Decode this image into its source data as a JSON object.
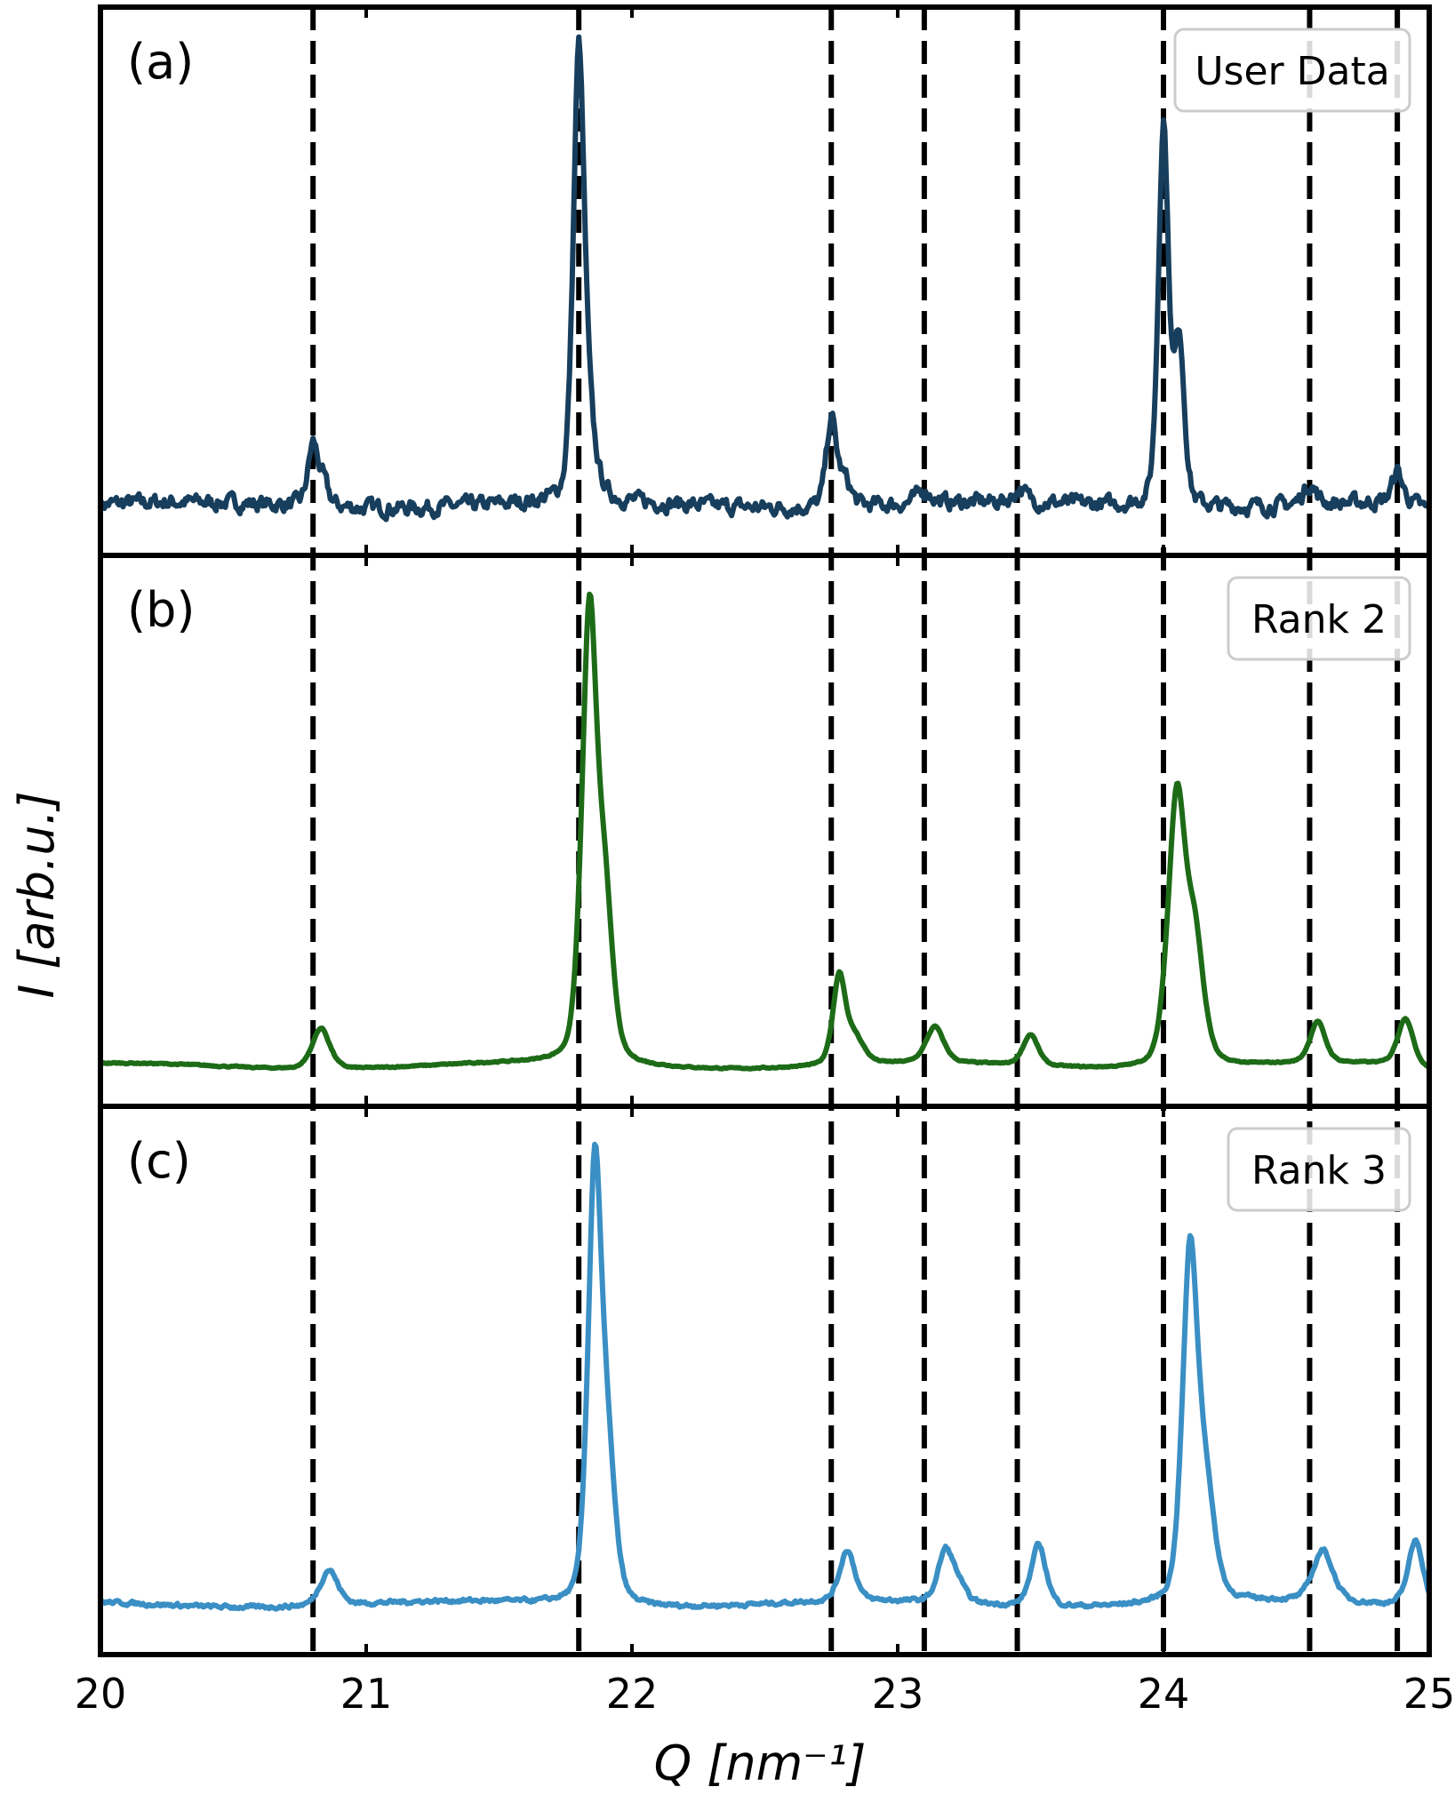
{
  "chart_data": {
    "type": "line",
    "xlabel": "Q [nm⁻¹]",
    "ylabel": "I [arb.u.]",
    "xlim": [
      20,
      25
    ],
    "x_ticks": [
      "20",
      "21",
      "22",
      "23",
      "24",
      "25"
    ],
    "reference_lines": [
      20.8,
      21.8,
      22.75,
      23.1,
      23.45,
      24.0,
      24.55,
      24.88
    ],
    "panels": [
      {
        "label": "(a)",
        "legend": "User Data",
        "color": "#173e5c",
        "baseline": 0.06,
        "noise": 0.012,
        "peaks": [
          {
            "x": 20.8,
            "h": 0.12,
            "w": 0.02
          },
          {
            "x": 20.84,
            "h": 0.04,
            "w": 0.02
          },
          {
            "x": 21.8,
            "h": 0.86,
            "w": 0.022
          },
          {
            "x": 21.84,
            "h": 0.1,
            "w": 0.03
          },
          {
            "x": 22.75,
            "h": 0.17,
            "w": 0.02
          },
          {
            "x": 22.8,
            "h": 0.05,
            "w": 0.025
          },
          {
            "x": 23.1,
            "h": 0.025,
            "w": 0.03
          },
          {
            "x": 23.46,
            "h": 0.025,
            "w": 0.025
          },
          {
            "x": 24.0,
            "h": 0.75,
            "w": 0.02
          },
          {
            "x": 24.06,
            "h": 0.32,
            "w": 0.02
          },
          {
            "x": 24.55,
            "h": 0.04,
            "w": 0.025
          },
          {
            "x": 24.88,
            "h": 0.06,
            "w": 0.02
          }
        ]
      },
      {
        "label": "(b)",
        "legend": "Rank 2",
        "color": "#1d6b17",
        "baseline": 0.04,
        "noise": 0.001,
        "peaks": [
          {
            "x": 20.83,
            "h": 0.08,
            "w": 0.035
          },
          {
            "x": 21.84,
            "h": 0.87,
            "w": 0.03
          },
          {
            "x": 21.9,
            "h": 0.28,
            "w": 0.03
          },
          {
            "x": 22.78,
            "h": 0.17,
            "w": 0.025
          },
          {
            "x": 22.84,
            "h": 0.05,
            "w": 0.035
          },
          {
            "x": 23.14,
            "h": 0.07,
            "w": 0.035
          },
          {
            "x": 23.5,
            "h": 0.06,
            "w": 0.03
          },
          {
            "x": 24.05,
            "h": 0.52,
            "w": 0.035
          },
          {
            "x": 24.12,
            "h": 0.22,
            "w": 0.035
          },
          {
            "x": 24.58,
            "h": 0.08,
            "w": 0.03
          },
          {
            "x": 24.91,
            "h": 0.09,
            "w": 0.03
          }
        ]
      },
      {
        "label": "(c)",
        "legend": "Rank 3",
        "color": "#3a8fc4",
        "baseline": 0.06,
        "noise": 0.003,
        "peaks": [
          {
            "x": 20.86,
            "h": 0.07,
            "w": 0.035
          },
          {
            "x": 21.86,
            "h": 0.84,
            "w": 0.027
          },
          {
            "x": 21.91,
            "h": 0.25,
            "w": 0.03
          },
          {
            "x": 22.81,
            "h": 0.1,
            "w": 0.03
          },
          {
            "x": 23.18,
            "h": 0.1,
            "w": 0.03
          },
          {
            "x": 23.23,
            "h": 0.03,
            "w": 0.03
          },
          {
            "x": 23.53,
            "h": 0.12,
            "w": 0.03
          },
          {
            "x": 24.1,
            "h": 0.67,
            "w": 0.03
          },
          {
            "x": 24.16,
            "h": 0.2,
            "w": 0.035
          },
          {
            "x": 24.6,
            "h": 0.1,
            "w": 0.04
          },
          {
            "x": 24.95,
            "h": 0.13,
            "w": 0.03
          }
        ]
      }
    ]
  }
}
